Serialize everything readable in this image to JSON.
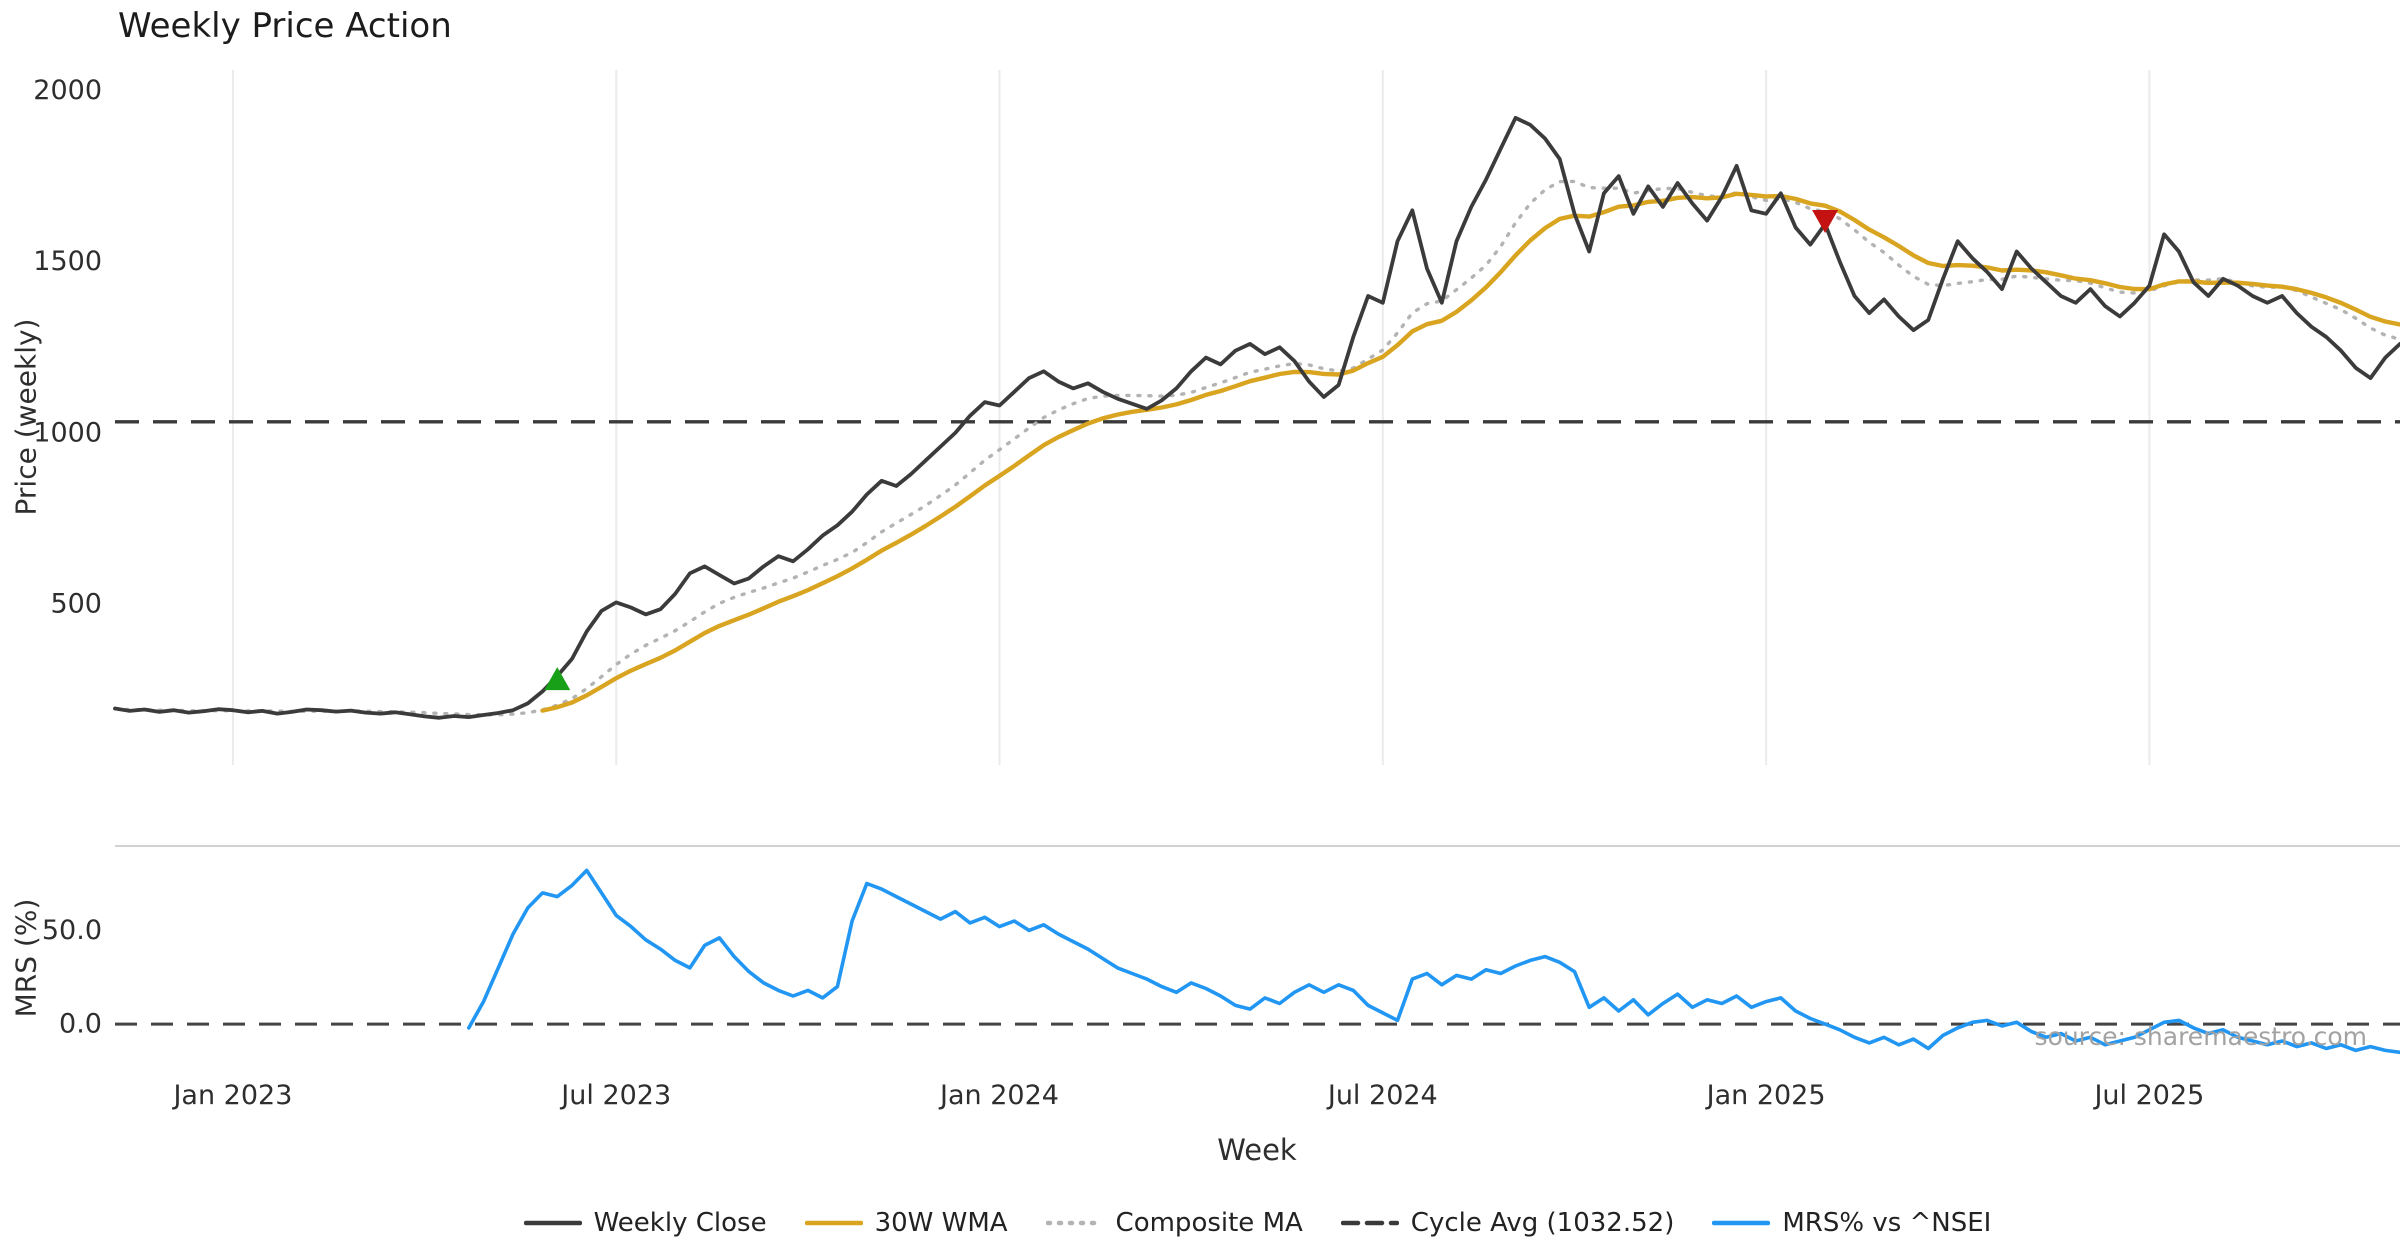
{
  "title": "Weekly Price Action",
  "source_note": "source: sharemaestro.com",
  "colors": {
    "weekly_close": "#3b3b3b",
    "wma": "#d9a420",
    "composite": "#b3b3b3",
    "cycle_avg": "#3a3a3a",
    "mrs": "#2196f3",
    "buy_marker": "#18a118",
    "sell_marker": "#c41111"
  },
  "chart_data": {
    "type": "line",
    "x": {
      "label": "Week",
      "n_weeks": 156,
      "tick_weeks": [
        8,
        34,
        60,
        86,
        112,
        138
      ],
      "tick_labels": [
        "Jan 2023",
        "Jul 2023",
        "Jan 2024",
        "Jul 2024",
        "Jan 2025",
        "Jul 2025"
      ]
    },
    "panels": [
      {
        "name": "price",
        "ylabel": "Price (weekly)",
        "ylim": [
          30,
          2060
        ],
        "yticks": [
          {
            "v": 500,
            "label": "500"
          },
          {
            "v": 1000,
            "label": "1000"
          },
          {
            "v": 1500,
            "label": "1500"
          },
          {
            "v": 2000,
            "label": "2000"
          }
        ],
        "cycle_avg": 1032.52,
        "series": [
          {
            "name": "Weekly Close",
            "color": "#3b3b3b",
            "style": "solid",
            "values": [
              195,
              188,
              192,
              185,
              190,
              183,
              187,
              193,
              190,
              184,
              188,
              180,
              185,
              192,
              190,
              186,
              189,
              183,
              180,
              184,
              178,
              172,
              168,
              173,
              170,
              176,
              182,
              190,
              210,
              245,
              290,
              340,
              420,
              480,
              505,
              490,
              470,
              485,
              530,
              590,
              610,
              585,
              560,
              575,
              610,
              640,
              625,
              660,
              700,
              730,
              770,
              820,
              860,
              845,
              880,
              920,
              960,
              1000,
              1050,
              1090,
              1080,
              1120,
              1160,
              1180,
              1150,
              1130,
              1145,
              1120,
              1100,
              1085,
              1070,
              1095,
              1130,
              1180,
              1220,
              1200,
              1240,
              1260,
              1230,
              1250,
              1210,
              1150,
              1105,
              1140,
              1280,
              1400,
              1380,
              1560,
              1650,
              1480,
              1380,
              1560,
              1660,
              1740,
              1830,
              1920,
              1900,
              1860,
              1800,
              1640,
              1530,
              1700,
              1750,
              1640,
              1720,
              1660,
              1730,
              1670,
              1620,
              1690,
              1780,
              1650,
              1640,
              1700,
              1600,
              1550,
              1610,
              1500,
              1400,
              1350,
              1390,
              1340,
              1300,
              1330,
              1450,
              1560,
              1510,
              1470,
              1420,
              1530,
              1480,
              1440,
              1400,
              1380,
              1420,
              1370,
              1340,
              1380,
              1430,
              1580,
              1530,
              1440,
              1400,
              1450,
              1430,
              1400,
              1380,
              1400,
              1350,
              1310,
              1280,
              1240,
              1190,
              1160,
              1220,
              1260
            ]
          },
          {
            "name": "30W WMA",
            "color": "#d9a420",
            "style": "solid",
            "derived_from": "Weekly Close",
            "method": "weighted_ma",
            "window": 30
          },
          {
            "name": "Composite MA",
            "color": "#b3b3b3",
            "style": "dotted",
            "derived_from": "Weekly Close",
            "method": "mean_of_smas",
            "windows": [
              5,
              10,
              15
            ]
          },
          {
            "name": "Cycle Avg (1032.52)",
            "color": "#3a3a3a",
            "style": "dashed",
            "value": 1032.52
          }
        ],
        "markers": [
          {
            "type": "buy-signal",
            "shape": "triangle-up",
            "week": 30,
            "price": 278,
            "color": "#18a118"
          },
          {
            "type": "sell-signal",
            "shape": "triangle-down",
            "week": 116,
            "price": 1622,
            "color": "#c41111"
          }
        ]
      },
      {
        "name": "mrs",
        "ylabel": "MRS (%)",
        "ylim": [
          -25,
          95
        ],
        "yticks": [
          {
            "v": 0,
            "label": "0.0"
          },
          {
            "v": 50,
            "label": "50.0"
          }
        ],
        "zero_line": 0,
        "series": [
          {
            "name": "MRS% vs ^NSEI",
            "color": "#2196f3",
            "style": "solid",
            "start_week": 24,
            "values": [
              -2,
              12,
              30,
              48,
              62,
              70,
              68,
              74,
              82,
              70,
              58,
              52,
              45,
              40,
              34,
              30,
              42,
              46,
              36,
              28,
              22,
              18,
              15,
              18,
              14,
              20,
              55,
              75,
              72,
              68,
              64,
              60,
              56,
              60,
              54,
              57,
              52,
              55,
              50,
              53,
              48,
              44,
              40,
              35,
              30,
              27,
              24,
              20,
              17,
              22,
              19,
              15,
              10,
              8,
              14,
              11,
              17,
              21,
              17,
              21,
              18,
              10,
              6,
              2,
              24,
              27,
              21,
              26,
              24,
              29,
              27,
              31,
              34,
              36,
              33,
              28,
              9,
              14,
              7,
              13,
              5,
              11,
              16,
              9,
              13,
              11,
              15,
              9,
              12,
              14,
              7,
              3,
              0,
              -3,
              -7,
              -10,
              -7,
              -11,
              -8,
              -13,
              -6,
              -2,
              1,
              2,
              -1,
              1,
              -4,
              -7,
              -5,
              -9,
              -7,
              -11,
              -9,
              -7,
              -3,
              1,
              2,
              -2,
              -5,
              -3,
              -7,
              -9,
              -11,
              -9,
              -12,
              -10,
              -13,
              -11,
              -14,
              -12,
              -14,
              -15
            ]
          }
        ]
      }
    ]
  },
  "legend": {
    "items": [
      {
        "label": "Weekly Close",
        "color": "#3b3b3b",
        "style": "solid"
      },
      {
        "label": "30W WMA",
        "color": "#d9a420",
        "style": "solid"
      },
      {
        "label": "Composite MA",
        "color": "#b3b3b3",
        "style": "dotted"
      },
      {
        "label": "Cycle Avg (1032.52)",
        "color": "#3a3a3a",
        "style": "dashed"
      },
      {
        "label": "MRS% vs ^NSEI",
        "color": "#2196f3",
        "style": "solid"
      }
    ]
  }
}
